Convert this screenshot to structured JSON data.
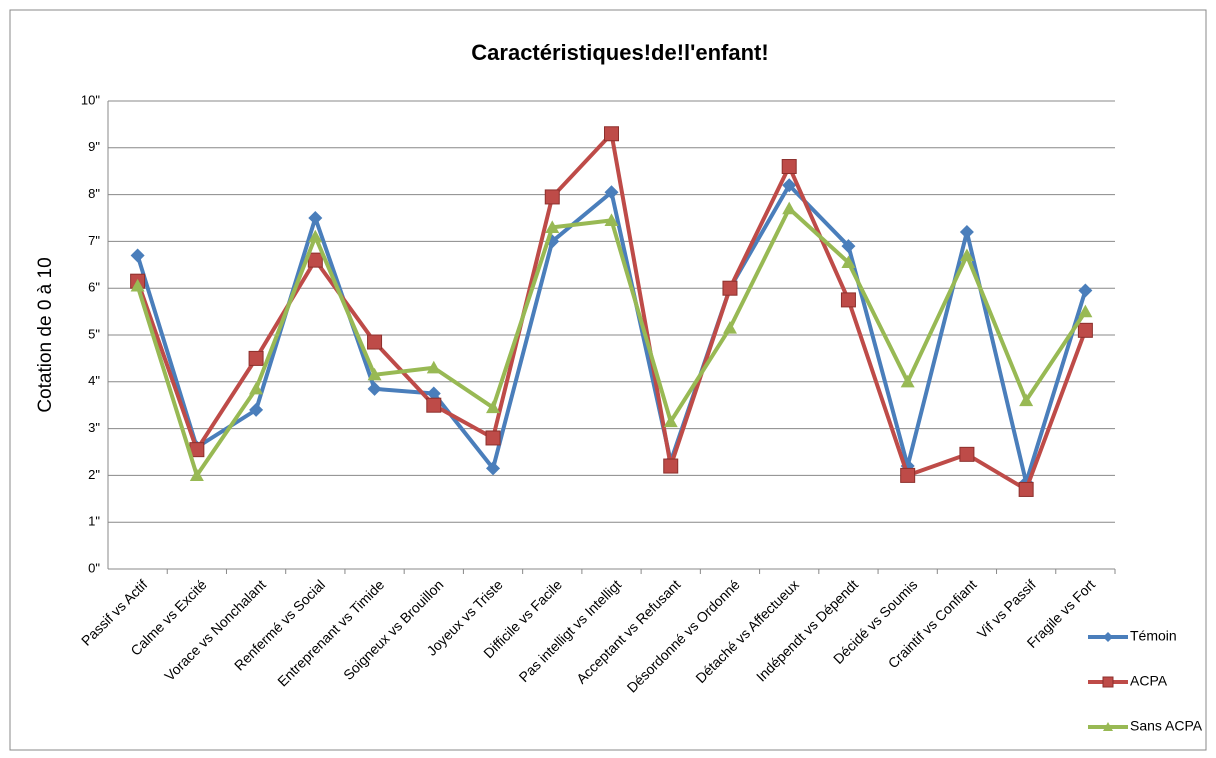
{
  "chart_data": {
    "type": "line",
    "title": "Caractéristiques!de!l'enfant!",
    "y_label": "Cotation de 0 à 10",
    "categories": [
      "Passif vs Actif",
      "Calme vs Excité",
      "Vorace vs Nonchalant",
      "Renfermé vs Social",
      "Entreprenant vs Timide",
      "Soigneux vs Brouillon",
      "Joyeux vs Triste",
      "Difficile vs Facile",
      "Pas intelligt vs Intelligt",
      "Acceptant vs Refusant",
      "Désordonné vs Ordonné",
      "Détaché vs Affectueux",
      "Indépendt vs Dépendt",
      "Décidé vs Soumis",
      "Craintif vs Confiant",
      "Vif vs Passif",
      "Fragile vs Fort"
    ],
    "series": [
      {
        "name": "Témoin",
        "color": "#4a7ebb",
        "marker": "diamond",
        "values": [
          6.7,
          2.6,
          3.4,
          7.5,
          3.85,
          3.75,
          2.15,
          7.0,
          8.05,
          2.3,
          6.0,
          8.2,
          6.9,
          2.2,
          7.2,
          1.85,
          5.95
        ]
      },
      {
        "name": "ACPA",
        "color": "#be4b48",
        "marker": "square",
        "values": [
          6.15,
          2.55,
          4.5,
          6.6,
          4.85,
          3.5,
          2.8,
          7.95,
          9.3,
          2.2,
          6.0,
          8.6,
          5.75,
          2.0,
          2.45,
          1.7,
          5.1
        ]
      },
      {
        "name": "Sans ACPA",
        "color": "#98b954",
        "marker": "triangle",
        "values": [
          6.05,
          2.0,
          3.85,
          7.1,
          4.15,
          4.3,
          3.45,
          7.3,
          7.45,
          3.15,
          5.15,
          7.7,
          6.55,
          4.0,
          6.7,
          3.6,
          5.5
        ]
      }
    ],
    "ylim": [
      0,
      10
    ],
    "yticks": [
      {
        "value": 0,
        "label": "0\""
      },
      {
        "value": 1,
        "label": "1\""
      },
      {
        "value": 2,
        "label": "2\""
      },
      {
        "value": 3,
        "label": "3\""
      },
      {
        "value": 4,
        "label": "4\""
      },
      {
        "value": 5,
        "label": "5\""
      },
      {
        "value": 6,
        "label": "6\""
      },
      {
        "value": 7,
        "label": "7\""
      },
      {
        "value": 8,
        "label": "8\""
      },
      {
        "value": 9,
        "label": "9\""
      },
      {
        "value": 10,
        "label": "10\""
      }
    ],
    "grid": true
  }
}
